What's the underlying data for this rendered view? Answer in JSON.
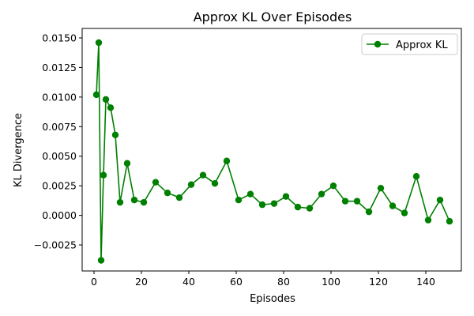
{
  "chart_data": {
    "type": "line",
    "title": "Approx KL Over Episodes",
    "xlabel": "Episodes",
    "ylabel": "KL Divergence",
    "xlim": [
      -5,
      155
    ],
    "ylim": [
      -0.0047,
      0.0158
    ],
    "xticks": [
      0,
      20,
      40,
      60,
      80,
      100,
      120,
      140
    ],
    "xtick_labels": [
      "0",
      "20",
      "40",
      "60",
      "80",
      "100",
      "120",
      "140"
    ],
    "yticks": [
      -0.0025,
      0.0,
      0.0025,
      0.005,
      0.0075,
      0.01,
      0.0125,
      0.015
    ],
    "ytick_labels": [
      "−0.0025",
      "0.0000",
      "0.0025",
      "0.0050",
      "0.0075",
      "0.0100",
      "0.0125",
      "0.0150"
    ],
    "grid": false,
    "legend_position": "top-right",
    "series": [
      {
        "name": "Approx KL",
        "color": "#008000",
        "marker": "circle",
        "x": [
          1,
          2,
          3,
          4,
          5,
          7,
          9,
          11,
          14,
          17,
          21,
          26,
          31,
          36,
          41,
          46,
          51,
          56,
          61,
          66,
          71,
          76,
          81,
          86,
          91,
          96,
          101,
          106,
          111,
          116,
          121,
          126,
          131,
          136,
          141,
          146,
          150
        ],
        "y": [
          0.0102,
          0.0146,
          -0.0038,
          0.0034,
          0.0098,
          0.0091,
          0.0068,
          0.0011,
          0.0044,
          0.0013,
          0.0011,
          0.0028,
          0.0019,
          0.0015,
          0.0026,
          0.0034,
          0.0027,
          0.0046,
          0.0013,
          0.0018,
          0.0009,
          0.001,
          0.0016,
          0.0007,
          0.0006,
          0.0018,
          0.0025,
          0.0012,
          0.0012,
          0.0003,
          0.0023,
          0.0008,
          0.0002,
          0.0033,
          -0.0004,
          0.0013,
          -0.0005
        ]
      }
    ]
  }
}
